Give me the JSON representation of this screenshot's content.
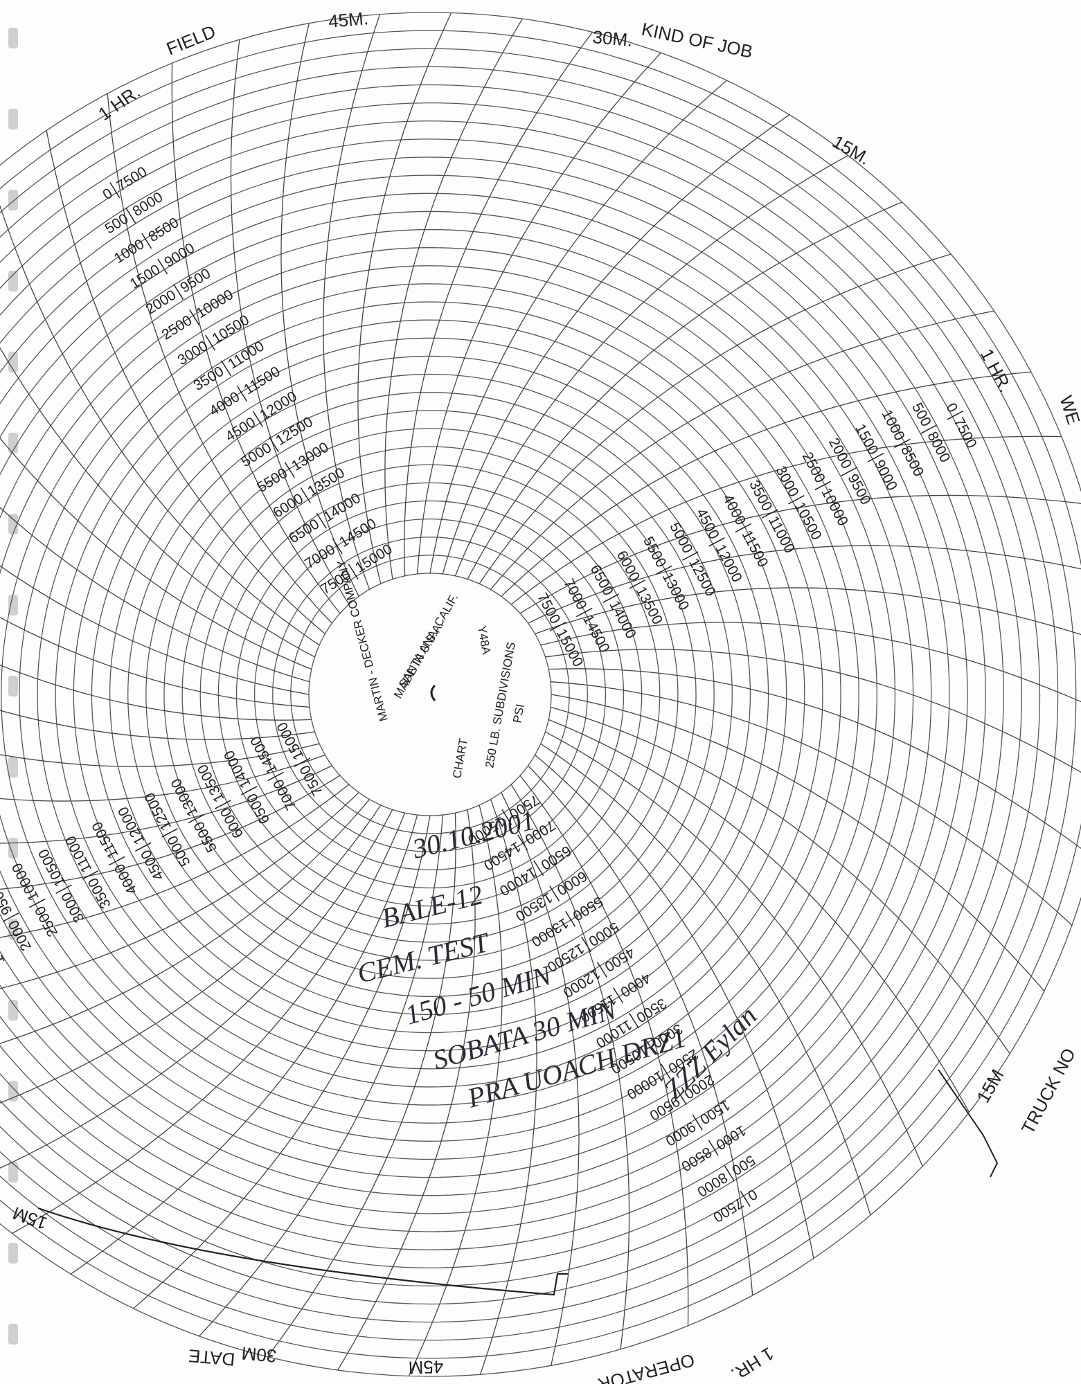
{
  "header": {
    "hr_top": "1 HR.",
    "field": "FIELD",
    "kind_of_job": "KIND OF JOB",
    "hr_right": "1 HR.",
    "well": "WE",
    "truck_no": "TRUCK NO",
    "hr_bottom": "1 HR.",
    "operator": "OPERATOR",
    "date": "DATE"
  },
  "time_marks": {
    "top_45": "45M.",
    "top_30": "30M.",
    "top_15": "15M.",
    "bottom_15": "15M",
    "bottom_30": "30M",
    "bottom_45": "45M",
    "right_15": "15M"
  },
  "scale": {
    "low": [
      "0",
      "500",
      "1000",
      "1500",
      "2000",
      "2500",
      "3000",
      "3500",
      "4000",
      "4500",
      "5000",
      "5500",
      "6000",
      "6500",
      "7000",
      "7500"
    ],
    "high": [
      "7500",
      "8000",
      "8500",
      "9000",
      "9500",
      "10000",
      "10500",
      "11000",
      "11500",
      "12000",
      "12500",
      "13000",
      "13500",
      "14000",
      "14500",
      "15000"
    ]
  },
  "center": {
    "company": "MARTIN - DECKER COMPANY",
    "city": "SANTA ANA, CALIF.",
    "origin": "MADE IN U.S.A.",
    "model": "Y48A",
    "unit": "PSI",
    "subdivisions": "250 LB. SUBDIVISIONS",
    "chart": "CHART"
  },
  "handwriting": [
    "30.10.2001",
    "BALE-12",
    "CEM. TEST",
    "150 - 50 MIN",
    "SOBATA 30 MIN",
    "PRA UOACH DRZ1",
    "ZZZ Eylan"
  ]
}
